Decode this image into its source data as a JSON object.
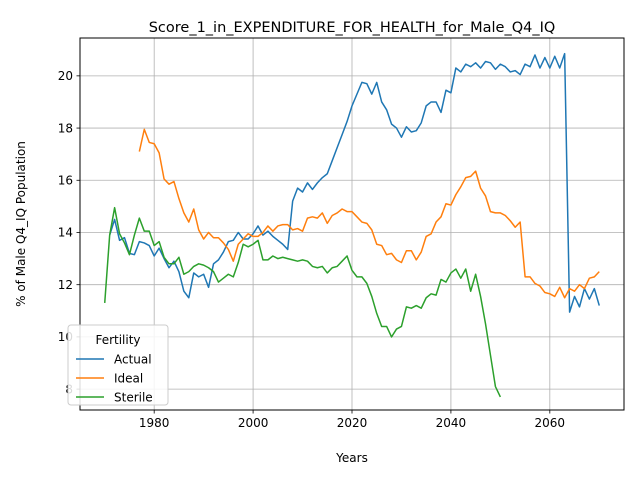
{
  "chart_data": {
    "type": "line",
    "title": "Score_1_in_EXPENDITURE_FOR_HEALTH_for_Male_Q4_IQ",
    "xlabel": "Years",
    "ylabel": "% of Male Q4_IQ Population",
    "xlim": [
      1965,
      2075
    ],
    "ylim": [
      7.2,
      21.45
    ],
    "xticks": [
      1980,
      2000,
      2020,
      2040,
      2060
    ],
    "yticks": [
      8,
      10,
      12,
      14,
      16,
      18,
      20
    ],
    "grid": true,
    "legend": {
      "title": "Fertility",
      "position": "lower-left"
    },
    "series": [
      {
        "name": "Actual",
        "color": "#1f77b4",
        "x": [
          1971,
          1972,
          1973,
          1974,
          1975,
          1976,
          1977,
          1978,
          1979,
          1980,
          1981,
          1982,
          1983,
          1984,
          1985,
          1986,
          1987,
          1988,
          1989,
          1990,
          1991,
          1992,
          1993,
          1994,
          1995,
          1996,
          1997,
          1998,
          1999,
          2000,
          2001,
          2002,
          2003,
          2004,
          2005,
          2006,
          2007,
          2008,
          2009,
          2010,
          2011,
          2012,
          2013,
          2014,
          2015,
          2016,
          2017,
          2018,
          2019,
          2020,
          2021,
          2022,
          2023,
          2024,
          2025,
          2026,
          2027,
          2028,
          2029,
          2030,
          2031,
          2032,
          2033,
          2034,
          2035,
          2036,
          2037,
          2038,
          2039,
          2040,
          2041,
          2042,
          2043,
          2044,
          2045,
          2046,
          2047,
          2048,
          2049,
          2050,
          2051,
          2052,
          2053,
          2054,
          2055,
          2056,
          2057,
          2058,
          2059,
          2060,
          2061,
          2062,
          2063,
          2064,
          2065,
          2066,
          2067,
          2068,
          2069,
          2070
        ],
        "values": [
          13.9,
          14.5,
          13.7,
          13.8,
          13.2,
          13.15,
          13.65,
          13.6,
          13.5,
          13.1,
          13.4,
          13.0,
          12.65,
          12.9,
          12.5,
          11.75,
          11.5,
          12.45,
          12.3,
          12.4,
          11.9,
          12.8,
          12.95,
          13.25,
          13.65,
          13.7,
          14.0,
          13.75,
          13.75,
          13.95,
          14.25,
          13.9,
          14.05,
          13.85,
          13.7,
          13.55,
          13.35,
          15.2,
          15.7,
          15.55,
          15.9,
          15.65,
          15.9,
          16.1,
          16.25,
          16.75,
          17.25,
          17.75,
          18.25,
          18.85,
          19.3,
          19.75,
          19.7,
          19.3,
          19.75,
          19.0,
          18.7,
          18.15,
          18.0,
          17.65,
          18.05,
          17.85,
          17.9,
          18.2,
          18.85,
          19.0,
          19.0,
          18.6,
          19.45,
          19.35,
          20.3,
          20.15,
          20.45,
          20.35,
          20.5,
          20.3,
          20.55,
          20.5,
          20.25,
          20.45,
          20.35,
          20.15,
          20.2,
          20.05,
          20.45,
          20.35,
          20.8,
          20.3,
          20.7,
          20.3,
          20.75,
          20.3,
          20.85,
          10.95,
          11.55,
          11.15,
          11.85,
          11.45,
          11.85,
          11.2
        ]
      },
      {
        "name": "Ideal",
        "color": "#ff7f0e",
        "x": [
          1977,
          1978,
          1979,
          1980,
          1981,
          1982,
          1983,
          1984,
          1985,
          1986,
          1987,
          1988,
          1989,
          1990,
          1991,
          1992,
          1993,
          1994,
          1995,
          1996,
          1997,
          1998,
          1999,
          2000,
          2001,
          2002,
          2003,
          2004,
          2005,
          2006,
          2007,
          2008,
          2009,
          2010,
          2011,
          2012,
          2013,
          2014,
          2015,
          2016,
          2017,
          2018,
          2019,
          2020,
          2021,
          2022,
          2023,
          2024,
          2025,
          2026,
          2027,
          2028,
          2029,
          2030,
          2031,
          2032,
          2033,
          2034,
          2035,
          2036,
          2037,
          2038,
          2039,
          2040,
          2041,
          2042,
          2043,
          2044,
          2045,
          2046,
          2047,
          2048,
          2049,
          2050,
          2051,
          2052,
          2053,
          2054,
          2055,
          2056,
          2057,
          2058,
          2059,
          2060,
          2061,
          2062,
          2063,
          2064,
          2065,
          2066,
          2067,
          2068,
          2069,
          2070
        ],
        "values": [
          17.1,
          17.95,
          17.45,
          17.4,
          17.05,
          16.05,
          15.85,
          15.95,
          15.3,
          14.75,
          14.4,
          14.9,
          14.1,
          13.75,
          14.0,
          13.8,
          13.8,
          13.6,
          13.35,
          12.9,
          13.55,
          13.75,
          13.95,
          13.85,
          13.85,
          14.0,
          14.25,
          14.05,
          14.25,
          14.3,
          14.3,
          14.1,
          14.15,
          14.05,
          14.55,
          14.6,
          14.55,
          14.75,
          14.35,
          14.65,
          14.75,
          14.9,
          14.8,
          14.8,
          14.6,
          14.4,
          14.35,
          14.1,
          13.55,
          13.5,
          13.15,
          13.2,
          12.95,
          12.85,
          13.3,
          13.3,
          12.95,
          13.25,
          13.85,
          13.95,
          14.4,
          14.6,
          15.1,
          15.05,
          15.45,
          15.75,
          16.1,
          16.15,
          16.35,
          15.7,
          15.4,
          14.8,
          14.75,
          14.75,
          14.65,
          14.45,
          14.2,
          14.4,
          12.3,
          12.3,
          12.05,
          11.95,
          11.7,
          11.65,
          11.55,
          11.9,
          11.5,
          11.85,
          11.75,
          12.0,
          11.85,
          12.25,
          12.3,
          12.5
        ]
      },
      {
        "name": "Sterile",
        "color": "#2ca02c",
        "x": [
          1970,
          1971,
          1972,
          1973,
          1974,
          1975,
          1976,
          1977,
          1978,
          1979,
          1980,
          1981,
          1982,
          1983,
          1984,
          1985,
          1986,
          1987,
          1988,
          1989,
          1990,
          1991,
          1992,
          1993,
          1994,
          1995,
          1996,
          1997,
          1998,
          1999,
          2000,
          2001,
          2002,
          2003,
          2004,
          2005,
          2006,
          2007,
          2008,
          2009,
          2010,
          2011,
          2012,
          2013,
          2014,
          2015,
          2016,
          2017,
          2018,
          2019,
          2020,
          2021,
          2022,
          2023,
          2024,
          2025,
          2026,
          2027,
          2028,
          2029,
          2030,
          2031,
          2032,
          2033,
          2034,
          2035,
          2036,
          2037,
          2038,
          2039,
          2040,
          2041,
          2042,
          2043,
          2044,
          2045,
          2046,
          2047,
          2048,
          2049,
          2050
        ],
        "values": [
          11.3,
          13.9,
          14.95,
          13.95,
          13.6,
          13.15,
          13.9,
          14.55,
          14.05,
          14.05,
          13.5,
          13.65,
          13.05,
          12.8,
          12.8,
          13.05,
          12.4,
          12.5,
          12.7,
          12.8,
          12.75,
          12.65,
          12.5,
          12.1,
          12.25,
          12.4,
          12.3,
          12.85,
          13.55,
          13.45,
          13.55,
          13.7,
          12.95,
          12.95,
          13.1,
          13.0,
          13.05,
          13.0,
          12.95,
          12.9,
          12.95,
          12.9,
          12.7,
          12.65,
          12.7,
          12.45,
          12.65,
          12.7,
          12.9,
          13.1,
          12.55,
          12.3,
          12.3,
          12.05,
          11.55,
          10.9,
          10.4,
          10.4,
          10.0,
          10.3,
          10.4,
          11.15,
          11.1,
          11.2,
          11.1,
          11.5,
          11.65,
          11.6,
          12.2,
          12.1,
          12.45,
          12.6,
          12.25,
          12.6,
          11.75,
          12.4,
          11.55,
          10.5,
          9.3,
          8.1,
          7.7
        ]
      }
    ]
  }
}
